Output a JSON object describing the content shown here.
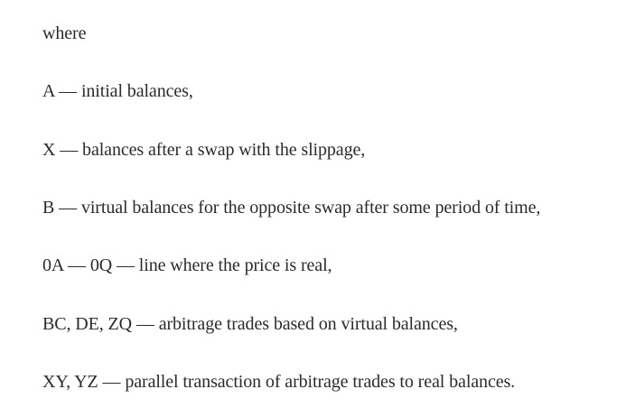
{
  "document": {
    "paragraphs": [
      "where",
      "A — initial balances,",
      "X — balances after a swap with the slippage,",
      "B — virtual balances for the opposite swap after some period of time,",
      "0A — 0Q — line where the price is real,",
      "BC, DE, ZQ — arbitrage trades based on virtual balances,",
      "XY, YZ — parallel transaction of arbitrage trades to real balances."
    ]
  }
}
